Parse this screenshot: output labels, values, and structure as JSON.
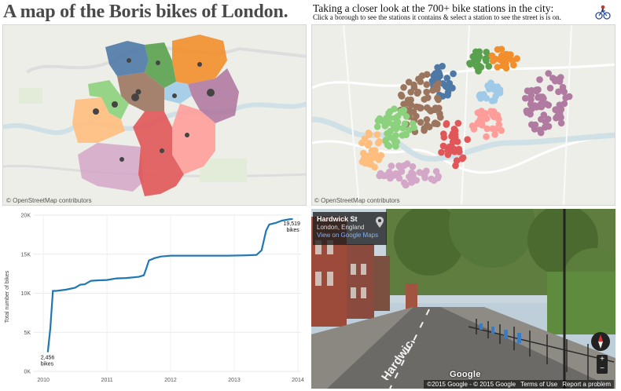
{
  "title": "A map of the Boris bikes of London.",
  "subtitle": "Taking a closer look at the 700+ bike stations in the city:",
  "instruction": "Click a borough to see the stations it contains & select a station to see the street is is on.",
  "map_attribution": "© OpenStreetMap contributors",
  "borough_colors": [
    "#4e79a7",
    "#59a14f",
    "#f28e2b",
    "#9c755f",
    "#b07aa1",
    "#a0cbe8",
    "#8cd17d",
    "#ffbe7d",
    "#e15759",
    "#ff9d9a",
    "#d4a6c8"
  ],
  "chart_data": {
    "type": "line",
    "title": "",
    "xlabel": "",
    "ylabel": "Total number of bikes",
    "x_ticks": [
      "2010",
      "2011",
      "2012",
      "2013",
      "2014"
    ],
    "y_ticks": [
      "0K",
      "5K",
      "10K",
      "15K",
      "20K"
    ],
    "ylim": [
      0,
      20000
    ],
    "xlim": [
      2009.85,
      2014.05
    ],
    "series": [
      {
        "x": [
          2010.07,
          2010.11,
          2010.15,
          2010.2,
          2010.35,
          2010.5,
          2010.58,
          2010.65,
          2010.75,
          2010.85,
          2011.0,
          2011.15,
          2011.3,
          2011.5,
          2011.58,
          2011.61,
          2011.66,
          2011.75,
          2011.85,
          2012.0,
          2012.3,
          2012.6,
          2012.9,
          2013.2,
          2013.35,
          2013.43,
          2013.5,
          2013.55,
          2013.65,
          2013.75,
          2013.85,
          2013.92
        ],
        "y": [
          2456,
          5500,
          10300,
          10300,
          10450,
          10700,
          11100,
          11150,
          11600,
          11650,
          11700,
          11900,
          11950,
          12100,
          12300,
          13000,
          14200,
          14500,
          14700,
          14800,
          14800,
          14800,
          14800,
          14850,
          14900,
          15500,
          18000,
          18800,
          19000,
          19300,
          19450,
          19519
        ]
      }
    ],
    "annotations": {
      "start_value": "2,456",
      "start_unit": "bikes",
      "end_value": "19,519",
      "end_unit": "bikes"
    }
  },
  "streetview": {
    "street": "Hardwick St",
    "city": "London, England",
    "link": "View on Google Maps",
    "road_marking": "Hardwick St",
    "google_logo": "Google",
    "footer_copyright": "©2015 Google - © 2015 Google",
    "footer_terms": "Terms of Use",
    "footer_report": "Report a problem"
  },
  "icons": [
    "bike-logo-icon",
    "map-pin-icon",
    "compass-icon"
  ]
}
